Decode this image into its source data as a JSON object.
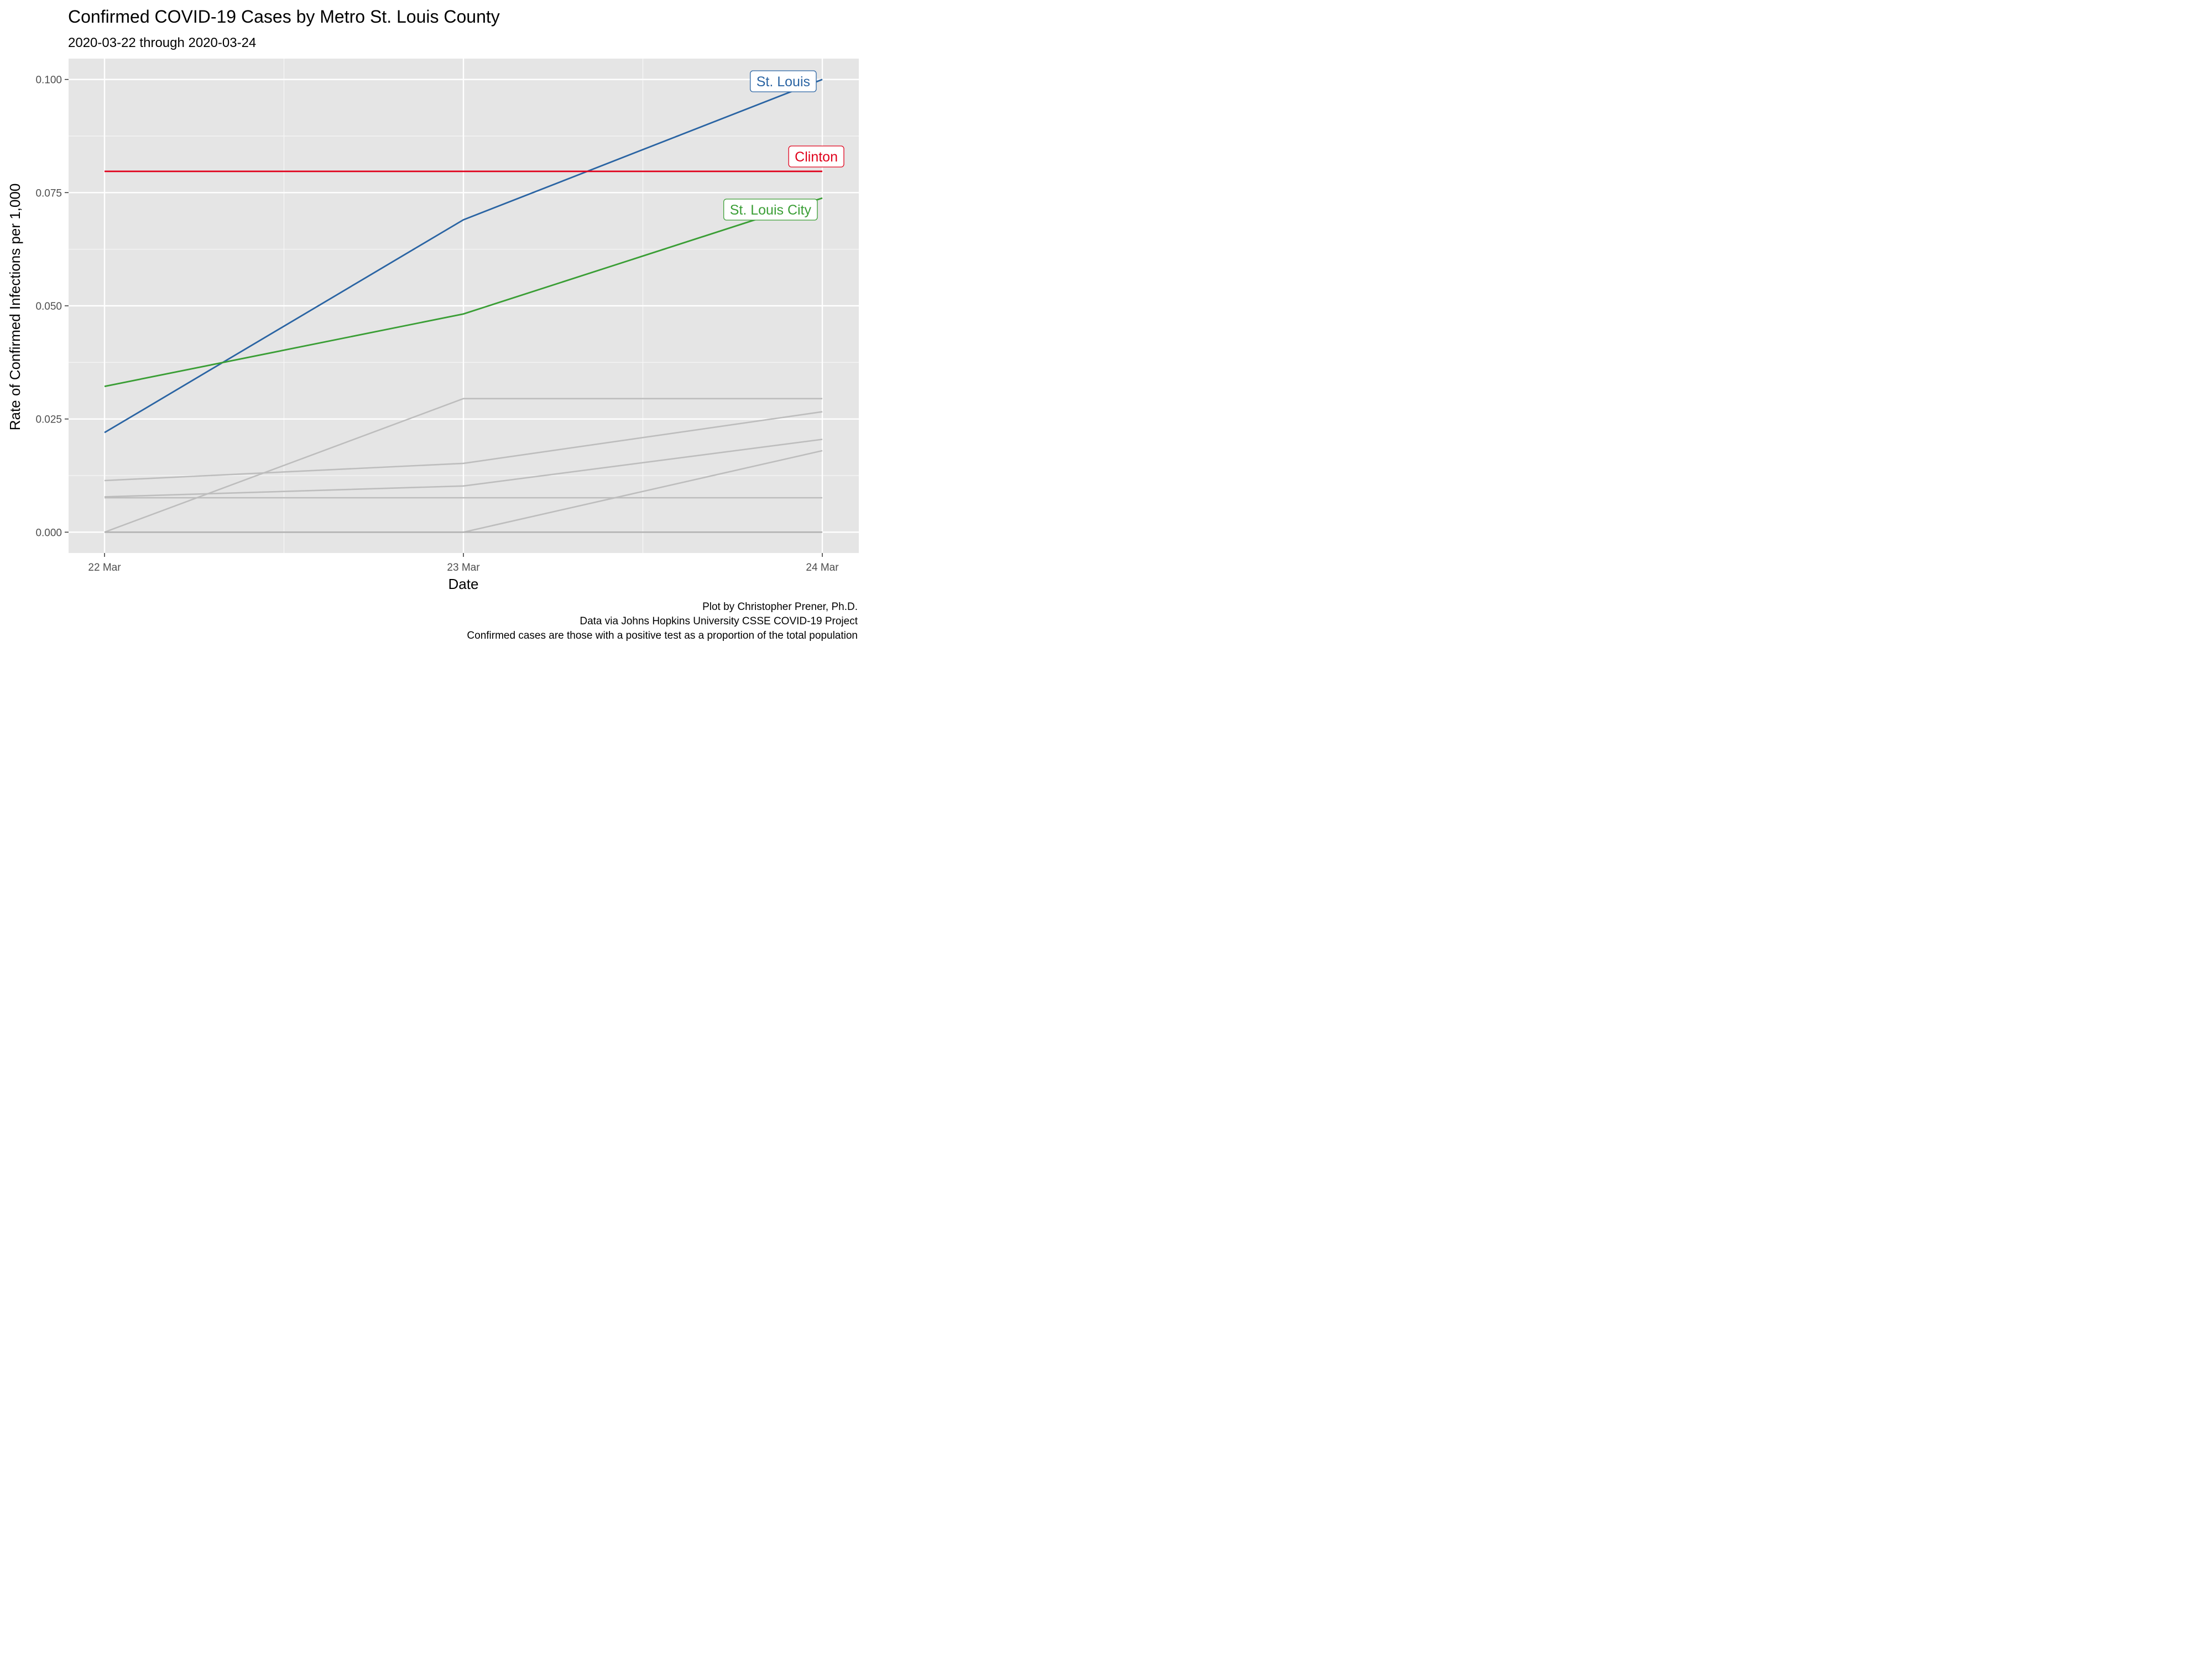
{
  "chart_data": {
    "type": "line",
    "title": "Confirmed COVID-19 Cases by Metro St. Louis County",
    "subtitle": "2020-03-22 through 2020-03-24",
    "xlabel": "Date",
    "ylabel": "Rate of Confirmed Infections per 1,000",
    "x_categories": [
      "2020-03-22",
      "2020-03-23",
      "2020-03-24"
    ],
    "x_tick_labels": [
      "22 Mar",
      "23 Mar",
      "24 Mar"
    ],
    "ylim": [
      -0.0046,
      0.1046
    ],
    "y_ticks": [
      0,
      0.025,
      0.05,
      0.075,
      0.1
    ],
    "y_tick_labels": [
      "0.000",
      "0.025",
      "0.050",
      "0.075",
      "0.100"
    ],
    "grid": true,
    "highlighted_series": [
      {
        "name": "St. Louis",
        "color": "#2a64a3",
        "values": [
          0.022,
          0.069,
          0.1
        ]
      },
      {
        "name": "Clinton",
        "color": "#e0001b",
        "values": [
          0.0797,
          0.0797,
          0.0797
        ]
      },
      {
        "name": "St. Louis City",
        "color": "#3a9e35",
        "values": [
          0.0322,
          0.0482,
          0.0738
        ]
      }
    ],
    "background_series": [
      {
        "color": "#bdbdbd",
        "values": [
          0,
          0.0295,
          0.0295
        ]
      },
      {
        "color": "#bdbdbd",
        "values": [
          0.0114,
          0.0152,
          0.0266
        ]
      },
      {
        "color": "#bdbdbd",
        "values": [
          0.0078,
          0.0102,
          0.0205
        ]
      },
      {
        "color": "#bdbdbd",
        "values": [
          0.0076,
          0.0076,
          0.0076
        ]
      },
      {
        "color": "#bdbdbd",
        "values": [
          0,
          0,
          0.018
        ]
      },
      {
        "color": "#b3b3b3",
        "values": [
          0,
          0,
          0
        ]
      }
    ],
    "caption": [
      "Plot by Christopher Prener, Ph.D.",
      "Data via Johns Hopkins University CSSE COVID-19 Project",
      "Confirmed cases are those with a positive test as a proportion of the total population"
    ]
  }
}
